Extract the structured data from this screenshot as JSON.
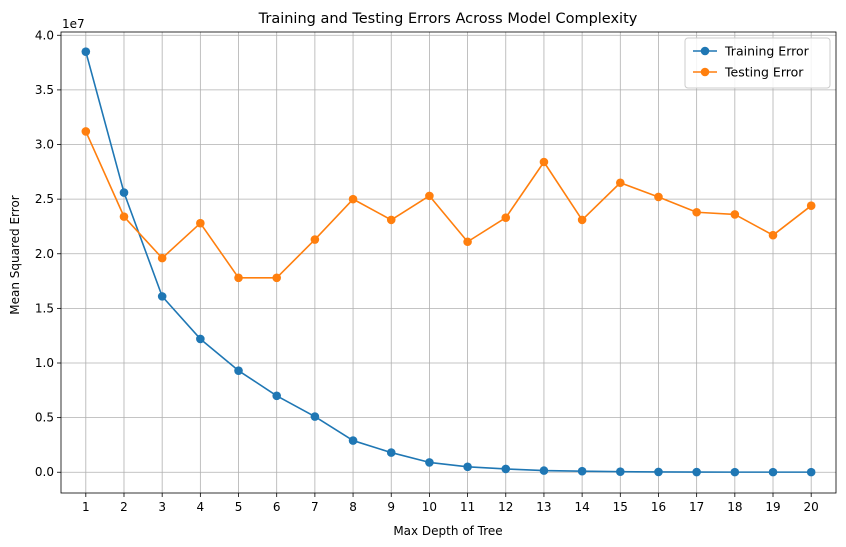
{
  "chart_data": {
    "type": "line",
    "title": "Training and Testing Errors Across Model Complexity",
    "xlabel": "Max Depth of Tree",
    "ylabel": "Mean Squared Error",
    "y_offset_label": "1e7",
    "x": [
      1,
      2,
      3,
      4,
      5,
      6,
      7,
      8,
      9,
      10,
      11,
      12,
      13,
      14,
      15,
      16,
      17,
      18,
      19,
      20
    ],
    "xticks": [
      "1",
      "2",
      "3",
      "4",
      "5",
      "6",
      "7",
      "8",
      "9",
      "10",
      "11",
      "12",
      "13",
      "14",
      "15",
      "16",
      "17",
      "18",
      "19",
      "20"
    ],
    "yticks": [
      0.0,
      0.5,
      1.0,
      1.5,
      2.0,
      2.5,
      3.0,
      3.5,
      4.0
    ],
    "ytick_labels": [
      "0.0",
      "0.5",
      "1.0",
      "1.5",
      "2.0",
      "2.5",
      "3.0",
      "3.5",
      "4.0"
    ],
    "y_unit_scale": 10000000,
    "xlim": [
      0.35,
      20.65
    ],
    "ylim": [
      -0.19,
      4.03
    ],
    "grid": true,
    "legend_position": "upper right",
    "series": [
      {
        "name": "Training Error",
        "color": "#1f77b4",
        "values": [
          3.85,
          2.56,
          1.61,
          1.22,
          0.93,
          0.7,
          0.51,
          0.29,
          0.18,
          0.09,
          0.05,
          0.03,
          0.015,
          0.01,
          0.005,
          0.003,
          0.002,
          0.001,
          0.001,
          0.001
        ]
      },
      {
        "name": "Testing Error",
        "color": "#ff7f0e",
        "values": [
          3.12,
          2.34,
          1.96,
          2.28,
          1.78,
          1.78,
          2.13,
          2.5,
          2.31,
          2.53,
          2.11,
          2.33,
          2.84,
          2.31,
          2.65,
          2.52,
          2.38,
          2.36,
          2.17,
          2.44
        ]
      }
    ]
  }
}
